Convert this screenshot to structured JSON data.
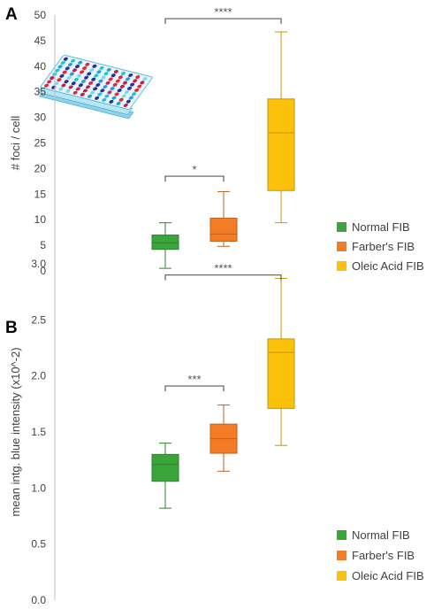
{
  "figure": {
    "panels": [
      "A",
      "B"
    ],
    "colors": {
      "normal": "#3aa53a",
      "farber": "#f47c25",
      "oleic": "#fcc10a",
      "axis": "#bfbfbf",
      "bracket": "#595959"
    },
    "icon": "well-plate-icon"
  },
  "chart_data": [
    {
      "type": "box",
      "panel": "A",
      "ylabel": "# foci / cell",
      "ylim": [
        0,
        50
      ],
      "yticks": [
        "0",
        "5",
        "10",
        "15",
        "20",
        "25",
        "30",
        "35",
        "40",
        "45",
        "50"
      ],
      "legend": [
        "Normal FIB",
        "Farber's  FIB",
        "Oleic Acid FIB"
      ],
      "legend_position": "bottom-right",
      "series": [
        {
          "name": "Normal FIB",
          "min": 0.5,
          "q1": 4.2,
          "median": 5.5,
          "q3": 7.0,
          "max": 9.4
        },
        {
          "name": "Farber's  FIB",
          "min": 4.8,
          "q1": 5.8,
          "median": 7.2,
          "q3": 10.3,
          "max": 15.5
        },
        {
          "name": "Oleic Acid FIB",
          "min": 9.4,
          "q1": 15.7,
          "median": 27.0,
          "q3": 33.6,
          "max": 46.7
        }
      ],
      "significance": [
        {
          "from": 0,
          "to": 1,
          "label": "*",
          "y": 18.5
        },
        {
          "from": 0,
          "to": 2,
          "label": "****",
          "y": 49.3
        }
      ]
    },
    {
      "type": "box",
      "panel": "B",
      "ylabel": "mean intg. blue intensity (x10^-2)",
      "ylim": [
        0.0,
        3.0
      ],
      "yticks": [
        "0.0",
        "0.5",
        "1.0",
        "1.5",
        "2.0",
        "2.5",
        "3.0"
      ],
      "legend": [
        "Normal FIB",
        "Farber's  FIB",
        "Oleic Acid FIB"
      ],
      "legend_position": "bottom-right",
      "series": [
        {
          "name": "Normal FIB",
          "min": 0.82,
          "q1": 1.06,
          "median": 1.21,
          "q3": 1.3,
          "max": 1.4
        },
        {
          "name": "Farber's  FIB",
          "min": 1.15,
          "q1": 1.31,
          "median": 1.44,
          "q3": 1.57,
          "max": 1.74
        },
        {
          "name": "Oleic Acid FIB",
          "min": 1.38,
          "q1": 1.71,
          "median": 2.21,
          "q3": 2.33,
          "max": 2.87
        }
      ],
      "significance": [
        {
          "from": 0,
          "to": 1,
          "label": "***",
          "y": 1.91
        },
        {
          "from": 0,
          "to": 2,
          "label": "****",
          "y": 2.9
        }
      ]
    }
  ]
}
